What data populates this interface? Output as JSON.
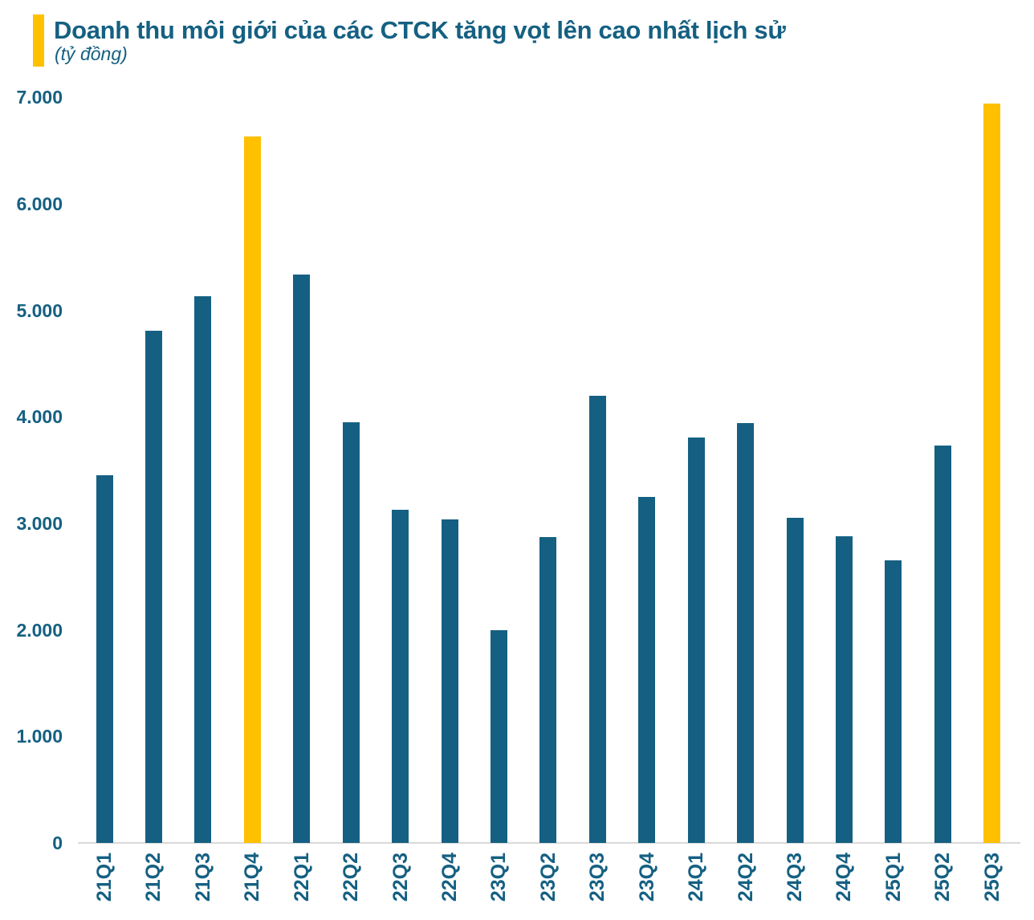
{
  "header": {
    "title": "Doanh thu môi giới của các CTCK tăng vọt lên cao nhất lịch sử",
    "subtitle": "(tỷ đồng)"
  },
  "colors": {
    "bar": "#156082",
    "highlight": "#FFC000",
    "title_text": "#156082",
    "tick_text": "#156082",
    "axis_line": "#D9D9D9",
    "title_marker": "#FFC000"
  },
  "chart_data": {
    "type": "bar",
    "title": "Doanh thu môi giới của các CTCK tăng vọt lên cao nhất lịch sử",
    "unit_label": "(tỷ đồng)",
    "xlabel": "",
    "ylabel": "",
    "categories": [
      "21Q1",
      "21Q2",
      "21Q3",
      "21Q4",
      "22Q1",
      "22Q2",
      "22Q3",
      "22Q4",
      "23Q1",
      "23Q2",
      "23Q3",
      "23Q4",
      "24Q1",
      "24Q2",
      "24Q3",
      "24Q4",
      "25Q1",
      "25Q2",
      "25Q3"
    ],
    "values": [
      3450,
      4810,
      5130,
      6630,
      5340,
      3950,
      3130,
      3040,
      2000,
      2870,
      4200,
      3250,
      3810,
      3940,
      3050,
      2880,
      2650,
      3730,
      6940
    ],
    "highlighted_categories": [
      "21Q4",
      "25Q3"
    ],
    "ylim": [
      0,
      7000
    ],
    "y_ticks": [
      {
        "value": 0,
        "label": "0"
      },
      {
        "value": 1000,
        "label": "1.000"
      },
      {
        "value": 2000,
        "label": "2.000"
      },
      {
        "value": 3000,
        "label": "3.000"
      },
      {
        "value": 4000,
        "label": "4.000"
      },
      {
        "value": 5000,
        "label": "5.000"
      },
      {
        "value": 6000,
        "label": "6.000"
      },
      {
        "value": 7000,
        "label": "7.000"
      }
    ],
    "grid": false,
    "legend_position": "none"
  }
}
